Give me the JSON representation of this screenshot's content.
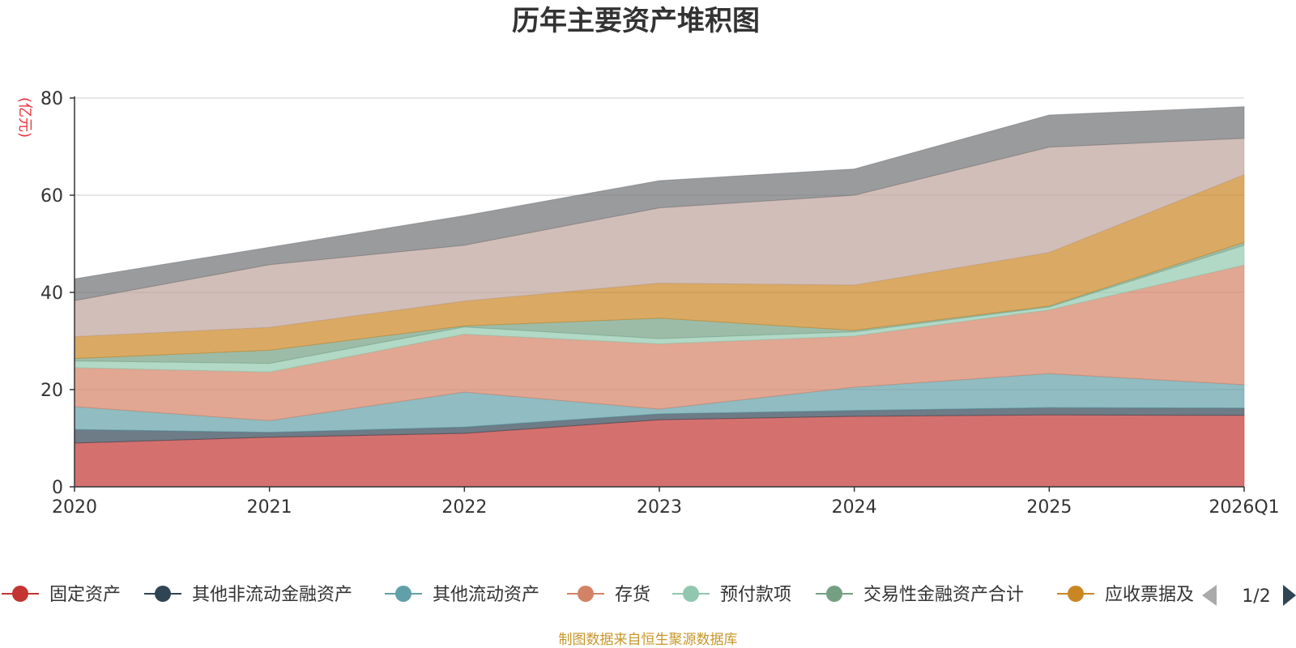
{
  "chart_data": {
    "type": "area",
    "stacked": true,
    "title": "历年主要资产堆积图",
    "ylabel": "(亿元)",
    "xlabel": "",
    "ylim": [
      0,
      80
    ],
    "yticks": [
      "0",
      "20",
      "40",
      "60",
      "80"
    ],
    "categories": [
      "2020",
      "2021",
      "2022",
      "2023",
      "2024",
      "2025",
      "2026Q1"
    ],
    "grid": true,
    "series": [
      {
        "name": "固定资产",
        "color": "#c23531",
        "values": [
          9.0,
          10.2,
          11.0,
          13.8,
          14.5,
          14.8,
          14.7
        ],
        "in_legend": true
      },
      {
        "name": "其他非流动金融资产",
        "color": "#2f4554",
        "values": [
          2.8,
          1.0,
          1.3,
          1.2,
          1.2,
          1.5,
          1.5
        ],
        "in_legend": true
      },
      {
        "name": "其他流动资产",
        "color": "#61a0a8",
        "values": [
          4.7,
          2.4,
          7.2,
          1.0,
          4.8,
          7.0,
          4.8
        ],
        "in_legend": true
      },
      {
        "name": "存货",
        "color": "#d48265",
        "values": [
          8.0,
          10.0,
          11.9,
          13.4,
          10.5,
          13.1,
          24.6
        ],
        "in_legend": true
      },
      {
        "name": "预付款项",
        "color": "#91c7ae",
        "values": [
          1.4,
          1.8,
          1.5,
          1.1,
          0.9,
          0.6,
          4.1
        ],
        "in_legend": true
      },
      {
        "name": "交易性金融资产合计",
        "color": "#749f83",
        "values": [
          0.5,
          2.7,
          0.2,
          4.2,
          0.3,
          0.2,
          0.6
        ],
        "in_legend": true
      },
      {
        "name": "应收票据及",
        "color": "#ca8622",
        "values": [
          4.5,
          4.7,
          5.1,
          7.2,
          9.3,
          11.0,
          13.9
        ],
        "in_legend": true
      },
      {
        "name": "",
        "color": "#bda29a",
        "values": [
          7.4,
          12.9,
          11.5,
          15.5,
          18.5,
          21.7,
          7.5
        ],
        "in_legend": false
      },
      {
        "name": "",
        "color": "#6e7074",
        "values": [
          4.5,
          3.6,
          6.1,
          5.6,
          5.4,
          6.6,
          6.5
        ],
        "in_legend": false
      }
    ],
    "legend": {
      "position": "bottom",
      "page": "1/2"
    },
    "source": "制图数据来自恒生聚源数据库"
  }
}
